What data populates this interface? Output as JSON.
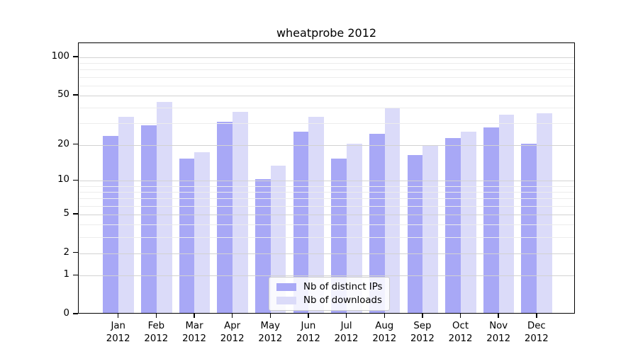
{
  "chart_data": {
    "type": "bar",
    "title": "wheatprobe 2012",
    "categories": [
      "Jan",
      "Feb",
      "Mar",
      "Apr",
      "May",
      "Jun",
      "Jul",
      "Aug",
      "Sep",
      "Oct",
      "Nov",
      "Dec"
    ],
    "year_label": "2012",
    "series": [
      {
        "name": "Nb of distinct IPs",
        "color": "#a8a8f6",
        "values": [
          23,
          28,
          15,
          30,
          10,
          25,
          15,
          24,
          16,
          22,
          27,
          20
        ]
      },
      {
        "name": "Nb of downloads",
        "color": "#dbdbf9",
        "values": [
          33,
          43,
          17,
          36,
          13,
          33,
          20,
          39,
          19,
          25,
          34,
          35
        ]
      }
    ],
    "yscale": "log(1+x)",
    "yticks": [
      0,
      1,
      2,
      5,
      10,
      20,
      50,
      100
    ],
    "minor_yticks": [
      3,
      4,
      6,
      7,
      8,
      9,
      30,
      40,
      60,
      70,
      80,
      90
    ],
    "ylim": [
      0,
      130
    ],
    "xlabel": "",
    "ylabel": "",
    "grid": true,
    "legend": {
      "labels": [
        "Nb of distinct IPs",
        "Nb of downloads"
      ],
      "position": "lower center"
    }
  }
}
